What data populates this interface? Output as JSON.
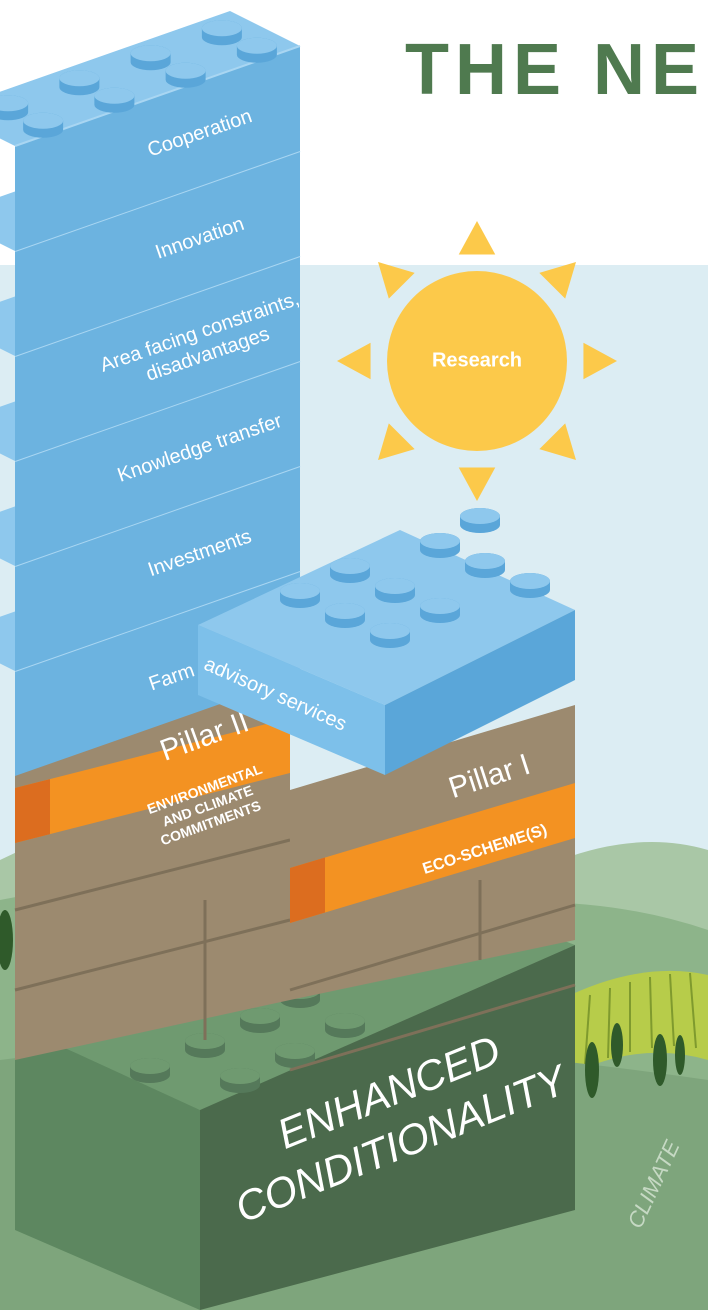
{
  "header": {
    "title": "THE NE"
  },
  "sun": {
    "label": "Research"
  },
  "bricks": [
    {
      "lines": [
        "Cooperation"
      ]
    },
    {
      "lines": [
        "Innovation"
      ]
    },
    {
      "lines": [
        "Area facing constraints,",
        "disadvantages"
      ]
    },
    {
      "lines": [
        "Knowledge transfer"
      ]
    },
    {
      "lines": [
        "Investments"
      ]
    }
  ],
  "farm_advisory": {
    "left": "Farm",
    "right": "advisory services"
  },
  "pillar_2": {
    "label": "Pillar II",
    "band": [
      "ENVIRONMENTAL",
      "AND CLIMATE",
      "COMMITMENTS"
    ]
  },
  "pillar_1": {
    "label": "Pillar I",
    "band": "ECO-SCHEME(S)"
  },
  "base": {
    "lines": [
      "ENHANCED",
      "CONDITIONALITY"
    ]
  },
  "landscape": {
    "label": "CLIMATE"
  }
}
